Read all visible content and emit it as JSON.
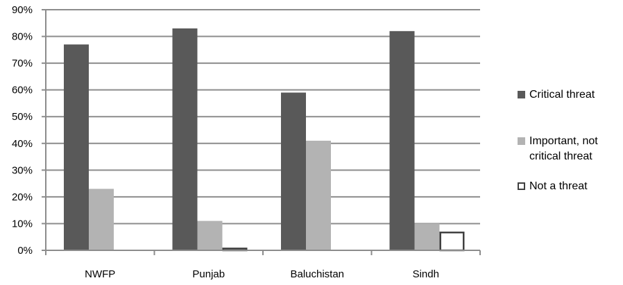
{
  "chart_data": {
    "type": "bar",
    "categories": [
      "NWFP",
      "Punjab",
      "Baluchistan",
      "Sindh"
    ],
    "series": [
      {
        "name": "Critical threat",
        "values": [
          77,
          83,
          59,
          82
        ],
        "color": "#595959"
      },
      {
        "name": "Important, not critical threat",
        "values": [
          23,
          11,
          41,
          10
        ],
        "color": "#b3b3b3"
      },
      {
        "name": "Not a threat",
        "values": [
          0,
          1,
          0,
          7
        ],
        "color": "#ffffff",
        "stroke": "#404040"
      }
    ],
    "ylim": [
      0,
      90
    ],
    "yticks": [
      "0%",
      "10%",
      "20%",
      "30%",
      "40%",
      "50%",
      "60%",
      "70%",
      "80%",
      "90%"
    ],
    "grid": true,
    "legend_position": "right"
  },
  "legend": {
    "items": [
      {
        "label": "Critical threat"
      },
      {
        "label": "Important, not\ncritical threat"
      },
      {
        "label": "Not a threat"
      }
    ]
  }
}
